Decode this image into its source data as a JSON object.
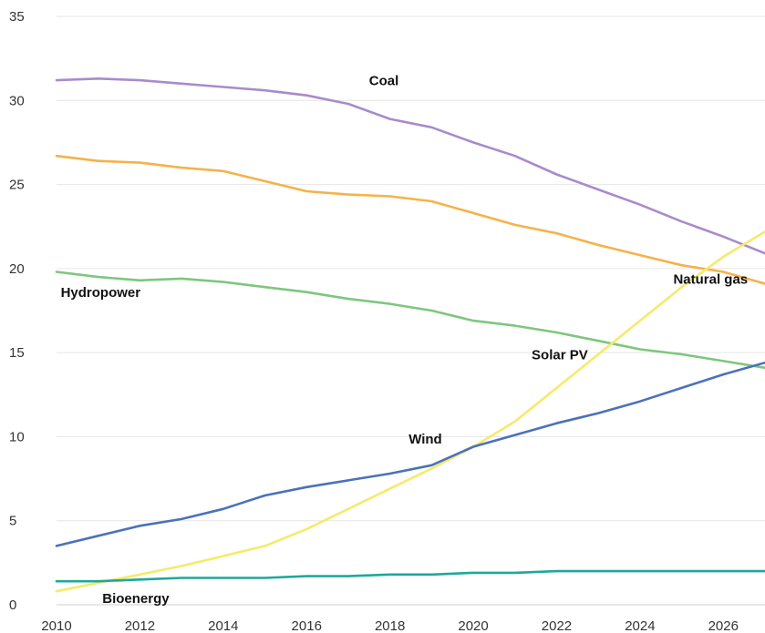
{
  "chart_data": {
    "type": "line",
    "title": "",
    "xlabel": "",
    "ylabel": "",
    "xlim": [
      2010,
      2027
    ],
    "ylim": [
      0,
      35
    ],
    "x_ticks": [
      "2010",
      "2012",
      "2014",
      "2016",
      "2018",
      "2020",
      "2022",
      "2024",
      "2026"
    ],
    "y_ticks": [
      "0",
      "5",
      "10",
      "15",
      "20",
      "25",
      "30",
      "35"
    ],
    "grid": "horizontal",
    "legend": "inline labels",
    "x": [
      2010,
      2011,
      2012,
      2013,
      2014,
      2015,
      2016,
      2017,
      2018,
      2019,
      2020,
      2021,
      2022,
      2023,
      2024,
      2025,
      2026,
      2027
    ],
    "series": [
      {
        "name": "Coal",
        "color": "#a98bcb",
        "values": [
          31.2,
          31.3,
          31.2,
          31.0,
          30.8,
          30.6,
          30.3,
          29.8,
          28.9,
          28.4,
          27.5,
          26.7,
          25.6,
          24.7,
          23.8,
          22.8,
          21.9,
          20.9
        ],
        "label_at": [
          2017.5,
          30.9
        ]
      },
      {
        "name": "Natural gas",
        "color": "#f5b24a",
        "values": [
          26.7,
          26.4,
          26.3,
          26.0,
          25.8,
          25.2,
          24.6,
          24.4,
          24.3,
          24.0,
          23.3,
          22.6,
          22.1,
          21.4,
          20.8,
          20.2,
          19.8,
          19.1
        ],
        "label_at": [
          2024.8,
          19.1
        ]
      },
      {
        "name": "Hydropower",
        "color": "#7fc67d",
        "values": [
          19.8,
          19.5,
          19.3,
          19.4,
          19.2,
          18.9,
          18.6,
          18.2,
          17.9,
          17.5,
          16.9,
          16.6,
          16.2,
          15.7,
          15.2,
          14.9,
          14.5,
          14.1
        ],
        "label_at": [
          2010.1,
          18.3
        ]
      },
      {
        "name": "Solar PV",
        "color": "#f6ea6a",
        "values": [
          0.8,
          1.3,
          1.8,
          2.3,
          2.9,
          3.5,
          4.5,
          5.7,
          6.9,
          8.1,
          9.4,
          10.9,
          12.9,
          14.9,
          16.9,
          18.9,
          20.7,
          22.2
        ],
        "label_at": [
          2021.4,
          14.6
        ]
      },
      {
        "name": "Wind",
        "color": "#4b72b8",
        "values": [
          3.5,
          4.1,
          4.7,
          5.1,
          5.7,
          6.5,
          7.0,
          7.4,
          7.8,
          8.3,
          9.4,
          10.1,
          10.8,
          11.4,
          12.1,
          12.9,
          13.7,
          14.4
        ],
        "label_at": [
          2018.45,
          9.6
        ]
      },
      {
        "name": "Bioenergy",
        "color": "#1fa89a",
        "values": [
          1.4,
          1.4,
          1.5,
          1.6,
          1.6,
          1.6,
          1.7,
          1.7,
          1.8,
          1.8,
          1.9,
          1.9,
          2.0,
          2.0,
          2.0,
          2.0,
          2.0,
          2.0
        ],
        "label_at": [
          2011.1,
          0.1
        ]
      }
    ]
  }
}
